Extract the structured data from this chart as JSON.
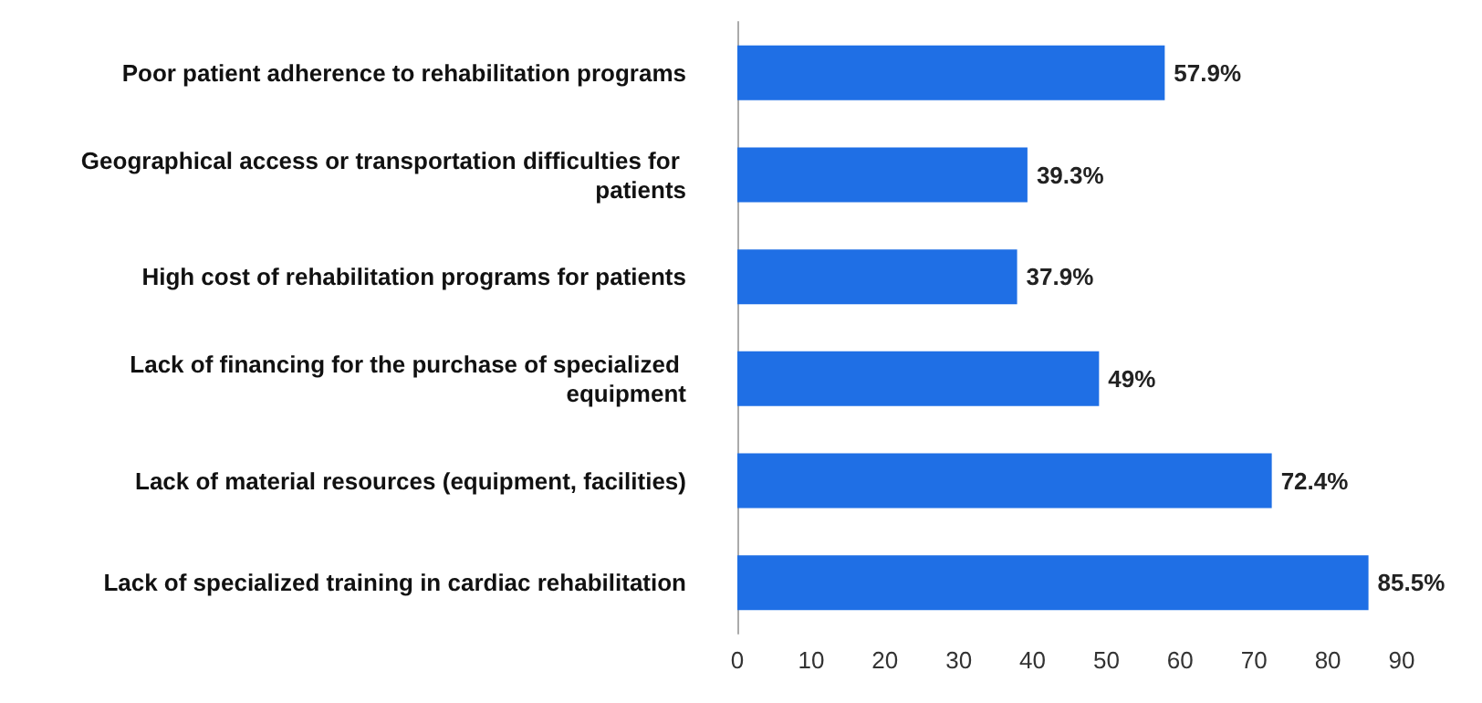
{
  "chart_data": {
    "type": "bar",
    "orientation": "horizontal",
    "categories": [
      "Poor patient adherence to rehabilitation programs",
      "Geographical access or transportation difficulties for patients",
      "High cost of rehabilitation programs for patients",
      "Lack of financing for the purchase of specialized equipment",
      "Lack of material resources (equipment, facilities)",
      "Lack of specialized training in cardiac rehabilitation"
    ],
    "values": [
      57.9,
      39.3,
      37.9,
      49,
      72.4,
      85.5
    ],
    "value_labels": [
      "57.9%",
      "39.3%",
      "37.9%",
      "49%",
      "72.4%",
      "85.5%"
    ],
    "color": "#1f6fe5",
    "xlim": [
      0,
      90
    ],
    "xticks": [
      0,
      10,
      20,
      30,
      40,
      50,
      60,
      70,
      80,
      90
    ]
  }
}
